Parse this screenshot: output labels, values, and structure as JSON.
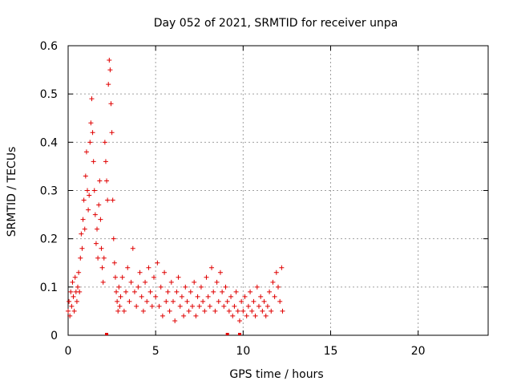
{
  "chart_data": {
    "type": "scatter",
    "title": "Day 052 of 2021, SRMTID for receiver unpa",
    "xlabel": "GPS time / hours",
    "ylabel": "SRMTID / TECUs",
    "xlim": [
      0,
      24
    ],
    "ylim": [
      0,
      0.6
    ],
    "xticks": [
      0,
      5,
      10,
      15,
      20
    ],
    "yticks": [
      0,
      0.1,
      0.2,
      0.3,
      0.4,
      0.5,
      0.6
    ],
    "xtick_labels": [
      "0",
      "5",
      "10",
      "15",
      "20"
    ],
    "ytick_labels": [
      "0",
      "0.1",
      "0.2",
      "0.3",
      "0.4",
      "0.5",
      "0.6"
    ],
    "grid": true,
    "marker": "+",
    "color": "#e00000",
    "series": [
      {
        "name": "SRMTID",
        "points": [
          [
            0.0,
            0.05
          ],
          [
            0.05,
            0.07
          ],
          [
            0.1,
            0.04
          ],
          [
            0.15,
            0.09
          ],
          [
            0.2,
            0.06
          ],
          [
            0.25,
            0.11
          ],
          [
            0.3,
            0.08
          ],
          [
            0.35,
            0.05
          ],
          [
            0.4,
            0.12
          ],
          [
            0.45,
            0.09
          ],
          [
            0.5,
            0.07
          ],
          [
            0.55,
            0.1
          ],
          [
            0.6,
            0.13
          ],
          [
            0.65,
            0.09
          ],
          [
            0.7,
            0.16
          ],
          [
            0.75,
            0.21
          ],
          [
            0.8,
            0.18
          ],
          [
            0.85,
            0.24
          ],
          [
            0.9,
            0.28
          ],
          [
            0.95,
            0.22
          ],
          [
            1.0,
            0.33
          ],
          [
            1.05,
            0.38
          ],
          [
            1.1,
            0.3
          ],
          [
            1.15,
            0.26
          ],
          [
            1.2,
            0.29
          ],
          [
            1.25,
            0.4
          ],
          [
            1.3,
            0.44
          ],
          [
            1.35,
            0.49
          ],
          [
            1.4,
            0.42
          ],
          [
            1.45,
            0.36
          ],
          [
            1.5,
            0.3
          ],
          [
            1.55,
            0.25
          ],
          [
            1.6,
            0.19
          ],
          [
            1.65,
            0.22
          ],
          [
            1.7,
            0.16
          ],
          [
            1.75,
            0.27
          ],
          [
            1.8,
            0.32
          ],
          [
            1.85,
            0.24
          ],
          [
            1.9,
            0.18
          ],
          [
            1.95,
            0.14
          ],
          [
            2.0,
            0.11
          ],
          [
            2.05,
            0.16
          ],
          [
            2.1,
            0.4
          ],
          [
            2.15,
            0.36
          ],
          [
            2.2,
            0.32
          ],
          [
            2.25,
            0.28
          ],
          [
            2.3,
            0.52
          ],
          [
            2.35,
            0.57
          ],
          [
            2.4,
            0.55
          ],
          [
            2.45,
            0.48
          ],
          [
            2.5,
            0.42
          ],
          [
            2.55,
            0.28
          ],
          [
            2.6,
            0.2
          ],
          [
            2.65,
            0.15
          ],
          [
            2.7,
            0.12
          ],
          [
            2.75,
            0.09
          ],
          [
            2.8,
            0.07
          ],
          [
            2.85,
            0.05
          ],
          [
            2.9,
            0.1
          ],
          [
            2.95,
            0.06
          ],
          [
            3.0,
            0.08
          ],
          [
            3.1,
            0.12
          ],
          [
            3.2,
            0.05
          ],
          [
            3.3,
            0.09
          ],
          [
            3.4,
            0.14
          ],
          [
            3.5,
            0.07
          ],
          [
            3.6,
            0.11
          ],
          [
            3.7,
            0.18
          ],
          [
            3.8,
            0.09
          ],
          [
            3.9,
            0.06
          ],
          [
            4.0,
            0.1
          ],
          [
            4.1,
            0.13
          ],
          [
            4.2,
            0.08
          ],
          [
            4.3,
            0.05
          ],
          [
            4.4,
            0.11
          ],
          [
            4.5,
            0.07
          ],
          [
            4.6,
            0.14
          ],
          [
            4.7,
            0.09
          ],
          [
            4.8,
            0.06
          ],
          [
            4.9,
            0.12
          ],
          [
            5.0,
            0.08
          ],
          [
            5.1,
            0.15
          ],
          [
            5.2,
            0.06
          ],
          [
            5.3,
            0.1
          ],
          [
            5.4,
            0.04
          ],
          [
            5.5,
            0.13
          ],
          [
            5.6,
            0.07
          ],
          [
            5.7,
            0.09
          ],
          [
            5.8,
            0.05
          ],
          [
            5.9,
            0.11
          ],
          [
            6.0,
            0.07
          ],
          [
            6.1,
            0.03
          ],
          [
            6.2,
            0.09
          ],
          [
            6.3,
            0.12
          ],
          [
            6.4,
            0.06
          ],
          [
            6.5,
            0.08
          ],
          [
            6.6,
            0.04
          ],
          [
            6.7,
            0.1
          ],
          [
            6.8,
            0.07
          ],
          [
            6.9,
            0.05
          ],
          [
            7.0,
            0.09
          ],
          [
            7.1,
            0.06
          ],
          [
            7.2,
            0.11
          ],
          [
            7.3,
            0.04
          ],
          [
            7.4,
            0.08
          ],
          [
            7.5,
            0.06
          ],
          [
            7.6,
            0.1
          ],
          [
            7.7,
            0.07
          ],
          [
            7.8,
            0.05
          ],
          [
            7.9,
            0.12
          ],
          [
            8.0,
            0.08
          ],
          [
            8.1,
            0.06
          ],
          [
            8.2,
            0.14
          ],
          [
            8.3,
            0.09
          ],
          [
            8.4,
            0.05
          ],
          [
            8.5,
            0.11
          ],
          [
            8.6,
            0.07
          ],
          [
            8.7,
            0.13
          ],
          [
            8.8,
            0.09
          ],
          [
            8.9,
            0.06
          ],
          [
            9.0,
            0.1
          ],
          [
            9.1,
            0.07
          ],
          [
            9.2,
            0.05
          ],
          [
            9.3,
            0.08
          ],
          [
            9.4,
            0.04
          ],
          [
            9.5,
            0.06
          ],
          [
            9.6,
            0.09
          ],
          [
            9.7,
            0.05
          ],
          [
            9.8,
            0.03
          ],
          [
            9.9,
            0.07
          ],
          [
            10.0,
            0.05
          ],
          [
            10.1,
            0.08
          ],
          [
            10.2,
            0.04
          ],
          [
            10.3,
            0.06
          ],
          [
            10.4,
            0.09
          ],
          [
            10.5,
            0.05
          ],
          [
            10.6,
            0.07
          ],
          [
            10.7,
            0.04
          ],
          [
            10.8,
            0.1
          ],
          [
            10.9,
            0.06
          ],
          [
            11.0,
            0.08
          ],
          [
            11.1,
            0.05
          ],
          [
            11.2,
            0.07
          ],
          [
            11.3,
            0.04
          ],
          [
            11.4,
            0.06
          ],
          [
            11.5,
            0.09
          ],
          [
            11.6,
            0.05
          ],
          [
            11.7,
            0.11
          ],
          [
            11.8,
            0.08
          ],
          [
            11.9,
            0.13
          ],
          [
            12.0,
            0.1
          ],
          [
            12.1,
            0.07
          ],
          [
            12.2,
            0.14
          ],
          [
            12.25,
            0.05
          ]
        ]
      }
    ],
    "bottom_markers_x": [
      2.2,
      9.1,
      9.8
    ]
  }
}
